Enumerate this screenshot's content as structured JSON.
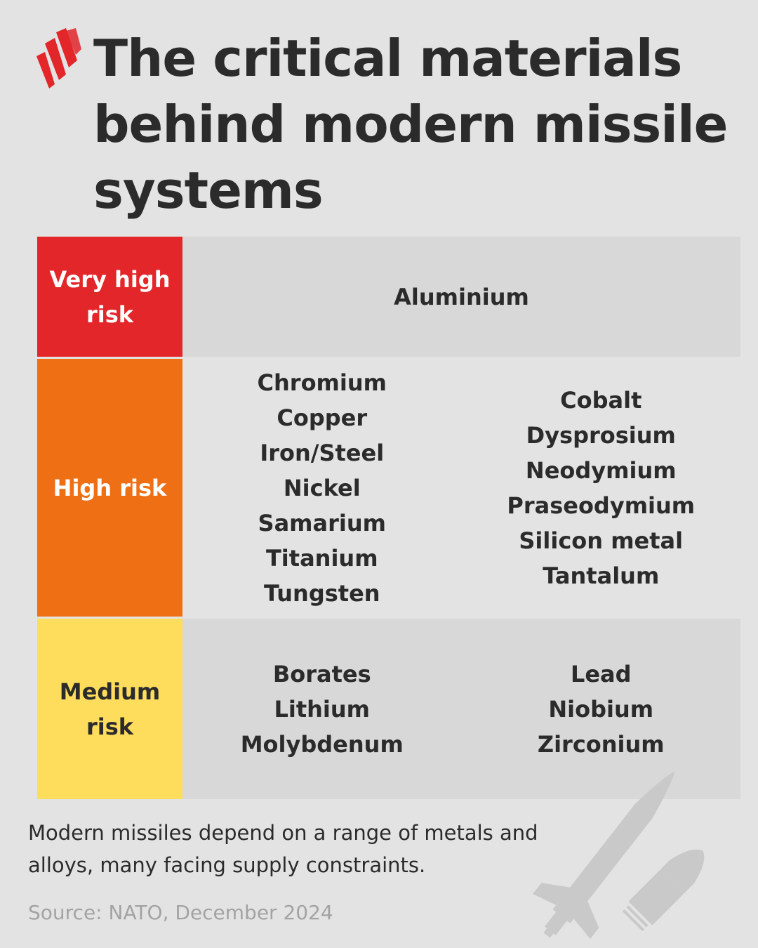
{
  "brand": {
    "logo_icon": "sbs-stripes-logo-icon",
    "logo_color": "#e2262a"
  },
  "header": {
    "title": "The critical materials behind modern missile systems"
  },
  "colors": {
    "very_high": "#e2262a",
    "high": "#ef6f15",
    "medium": "#fedc5c",
    "text": "#2b2b2b",
    "background": "#e3e3e3"
  },
  "risk_table": {
    "very_high": {
      "label": "Very high risk",
      "materials": [
        "Aluminium"
      ]
    },
    "high": {
      "label": "High risk",
      "column_1": [
        "Chromium",
        "Copper",
        "Iron/Steel",
        "Nickel",
        "Samarium",
        "Titanium",
        "Tungsten"
      ],
      "column_2": [
        "Cobalt",
        "Dysprosium",
        "Neodymium",
        "Praseodymium",
        "Silicon metal",
        "Tantalum"
      ]
    },
    "medium": {
      "label": "Medium risk",
      "column_1": [
        "Borates",
        "Lithium",
        "Molybdenum"
      ],
      "column_2": [
        "Lead",
        "Niobium",
        "Zirconium"
      ]
    }
  },
  "footer": {
    "description": "Modern missiles depend on a range of metals and alloys, many facing supply constraints.",
    "source": "Source: NATO, December 2024",
    "illustration_icon": "missile-and-shell-icon"
  }
}
